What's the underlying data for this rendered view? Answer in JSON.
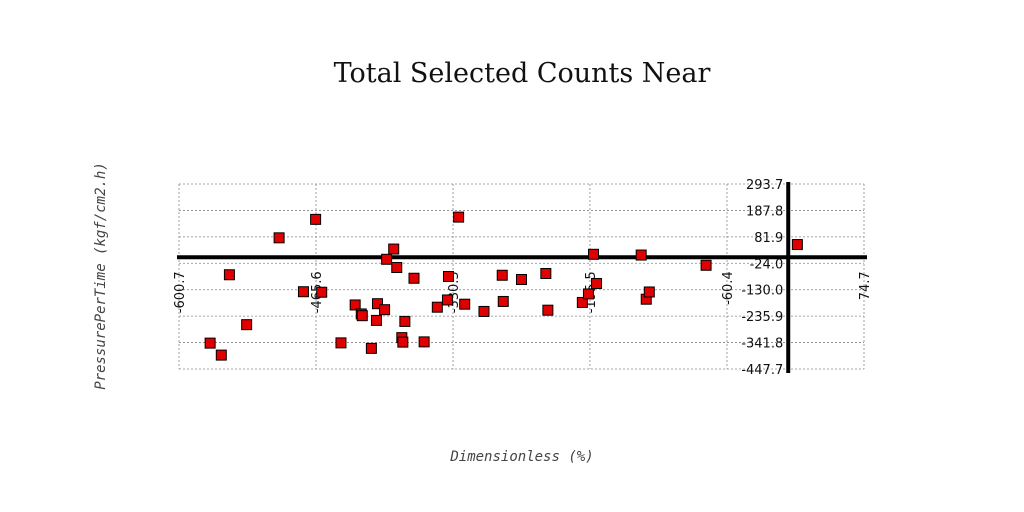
{
  "chart_data": {
    "type": "scatter",
    "title": "Total Selected Counts Near",
    "xlabel": "Dimensionless (%)",
    "ylabel": "PressurePerTime (kgf/cm2.h)",
    "xlim": [
      -600.7,
      74.7
    ],
    "ylim": [
      -447.7,
      293.7
    ],
    "x_ticks": [
      "-600.7",
      "-465.6",
      "-330.5",
      "-195.5",
      "-60.4",
      "74.7"
    ],
    "y_ticks": [
      "293.7",
      "187.8",
      "81.9",
      "-24.0",
      "-130.0",
      "-235.9",
      "-341.8",
      "-447.7"
    ],
    "grid": true,
    "series": [
      {
        "color": "#e00000",
        "x": [
          -570,
          -559,
          -551,
          -534,
          -502,
          -478,
          -466,
          -460,
          -441,
          -427,
          -421,
          -420,
          -411,
          -406,
          -405,
          -398,
          -396,
          -389,
          -386,
          -381,
          -380,
          -378,
          -369,
          -359,
          -346,
          -336,
          -335,
          -325,
          -319,
          -300,
          -282,
          -281,
          -263,
          -239,
          -237,
          -203,
          -197,
          -189,
          -192,
          -145,
          -140,
          -137,
          -81,
          9
        ],
        "y": [
          -344,
          -392,
          -70,
          -270,
          78,
          -138,
          152,
          -140,
          -343,
          -191,
          -227,
          -234,
          -365,
          -253,
          -186,
          -210,
          -8,
          33,
          -41,
          -322,
          -340,
          -257,
          -84,
          -339,
          -200,
          -171,
          -77,
          161,
          -188,
          -217,
          -72,
          -177,
          -89,
          -65,
          -212,
          -181,
          -147,
          -105,
          12,
          9,
          -168,
          -139,
          -32,
          51
        ]
      }
    ]
  }
}
